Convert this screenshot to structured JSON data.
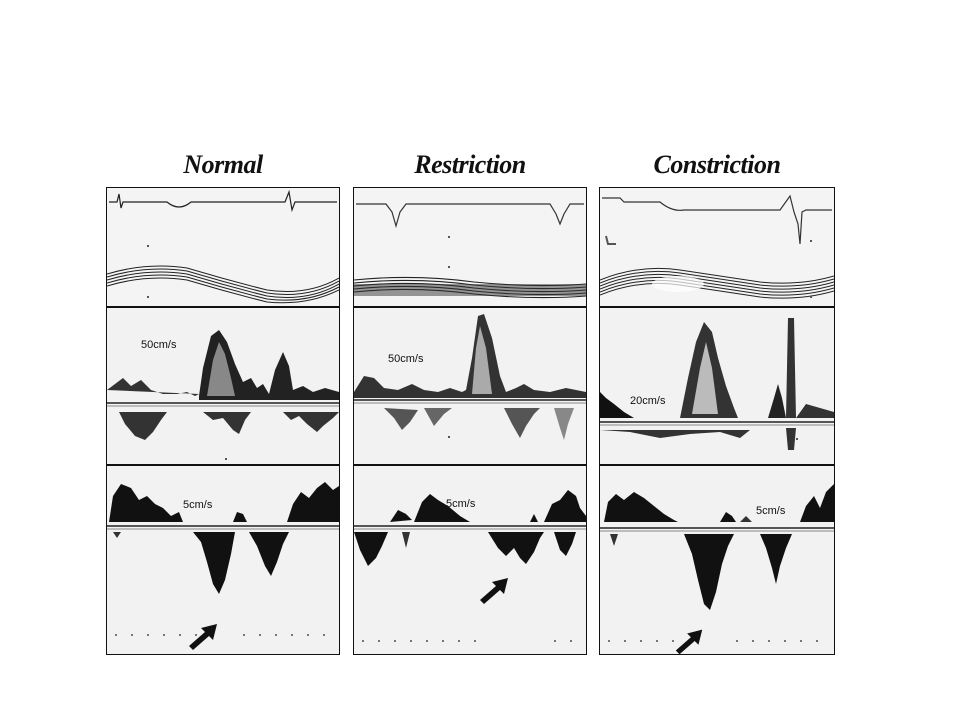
{
  "figure": {
    "columns": [
      {
        "title": "Normal",
        "mitral_label": "50cm/s",
        "tissue_label": "5cm/s"
      },
      {
        "title": "Restriction",
        "mitral_label": "50cm/s",
        "tissue_label": "5cm/s"
      },
      {
        "title": "Constriction",
        "mitral_label": "20cm/s",
        "tissue_label": "5cm/s"
      }
    ],
    "arrow_icon": "arrow-up-right-icon"
  }
}
